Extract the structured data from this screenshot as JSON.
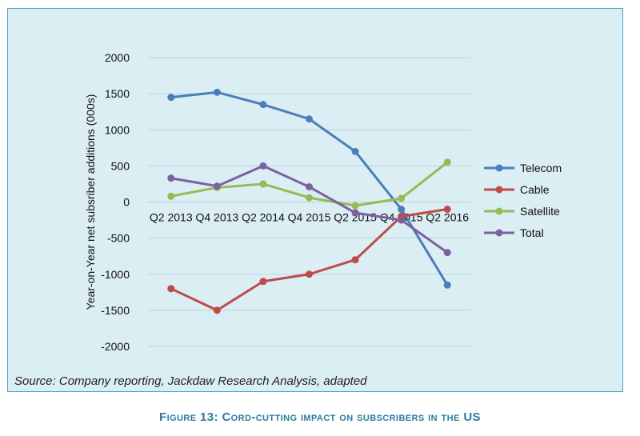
{
  "chart_data": {
    "type": "line",
    "title": "",
    "xlabel": "",
    "ylabel": "Year-on-Year net subsriber additions (000s)",
    "ylim": [
      -2000,
      2000
    ],
    "yticks": [
      2000,
      1500,
      1000,
      500,
      0,
      -500,
      -1000,
      -1500,
      -2000
    ],
    "categories": [
      "Q2 2013",
      "Q4 2013",
      "Q2 2014",
      "Q4 2015",
      "Q2 2015",
      "Q4 2015",
      "Q2 2016"
    ],
    "series": [
      {
        "name": "Telecom",
        "color": "#4a7ebb",
        "values": [
          1450,
          1520,
          1350,
          1150,
          700,
          -100,
          -1150
        ]
      },
      {
        "name": "Cable",
        "color": "#be4b48",
        "values": [
          -1200,
          -1500,
          -1100,
          -1000,
          -800,
          -200,
          -100
        ]
      },
      {
        "name": "Satellite",
        "color": "#98b954",
        "values": [
          80,
          200,
          250,
          60,
          -50,
          50,
          550
        ]
      },
      {
        "name": "Total",
        "color": "#7d60a0",
        "values": [
          330,
          220,
          500,
          210,
          -150,
          -250,
          -700
        ]
      }
    ],
    "grid": true,
    "legend_position": "right"
  },
  "source_note": "Source: Company reporting, Jackdaw Research Analysis, adapted",
  "caption": "Figure 13: Cord-cutting impact on subscribers in the US"
}
